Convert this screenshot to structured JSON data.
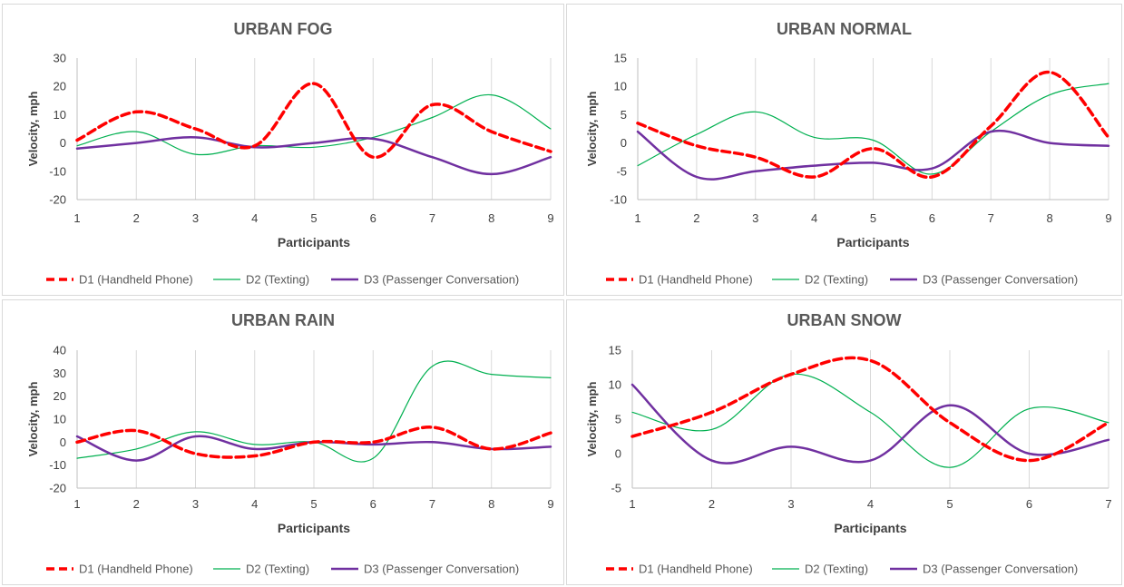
{
  "colors": {
    "d1": "#ff0000",
    "d2": "#00b050",
    "d3": "#7030a0",
    "grid": "#d9d9d9",
    "axis": "#bfbfbf",
    "text": "#595959"
  },
  "chart_data": [
    {
      "type": "line",
      "title": "URBAN FOG",
      "xlabel": "Participants",
      "ylabel": "Velocity, mph",
      "x": [
        1,
        2,
        3,
        4,
        5,
        6,
        7,
        8,
        9
      ],
      "ylim": [
        -20,
        30
      ],
      "yticks": [
        -20,
        -10,
        0,
        10,
        20,
        30
      ],
      "grid": "vertical",
      "legend": "bottom",
      "series": [
        {
          "name": "D1 (Handheld Phone)",
          "values": [
            1,
            11,
            5,
            -1,
            21,
            -5,
            13.5,
            4,
            -3
          ]
        },
        {
          "name": "D2 (Texting)",
          "values": [
            -1,
            4,
            -4,
            -1,
            -1.5,
            2,
            9,
            17,
            5
          ]
        },
        {
          "name": "D3 (Passenger Conversation)",
          "values": [
            -2,
            0,
            2,
            -1.5,
            0,
            1.5,
            -5,
            -11,
            -5
          ]
        }
      ]
    },
    {
      "type": "line",
      "title": "URBAN NORMAL",
      "xlabel": "Participants",
      "ylabel": "Velocity, mph",
      "x": [
        1,
        2,
        3,
        4,
        5,
        6,
        7,
        8,
        9
      ],
      "ylim": [
        -10,
        15
      ],
      "yticks": [
        -10,
        -5,
        0,
        5,
        10,
        15
      ],
      "grid": "vertical",
      "legend": "bottom",
      "series": [
        {
          "name": "D1 (Handheld Phone)",
          "values": [
            3.5,
            -0.5,
            -2.5,
            -6,
            -1,
            -6,
            3,
            12.5,
            1
          ]
        },
        {
          "name": "D2 (Texting)",
          "values": [
            -4,
            1.5,
            5.5,
            1,
            0.5,
            -5.5,
            2,
            8.5,
            10.5
          ]
        },
        {
          "name": "D3 (Passenger Conversation)",
          "values": [
            2,
            -6,
            -5,
            -4,
            -3.5,
            -4.5,
            2,
            0,
            -0.5
          ]
        }
      ]
    },
    {
      "type": "line",
      "title": "URBAN RAIN",
      "xlabel": "Participants",
      "ylabel": "Velocity, mph",
      "x": [
        1,
        2,
        3,
        4,
        5,
        6,
        7,
        8,
        9
      ],
      "ylim": [
        -20,
        40
      ],
      "yticks": [
        -20,
        -10,
        0,
        10,
        20,
        30,
        40
      ],
      "grid": "vertical",
      "legend": "bottom",
      "series": [
        {
          "name": "D1 (Handheld Phone)",
          "values": [
            0,
            5,
            -5,
            -6,
            0,
            0,
            6.5,
            -3,
            4
          ]
        },
        {
          "name": "D2 (Texting)",
          "values": [
            -7,
            -3,
            4.5,
            -1,
            0,
            -7,
            33,
            29.5,
            28
          ]
        },
        {
          "name": "D3 (Passenger Conversation)",
          "values": [
            2.5,
            -8,
            2.5,
            -3,
            0,
            -1,
            0,
            -3,
            -2
          ]
        }
      ]
    },
    {
      "type": "line",
      "title": "URBAN SNOW",
      "xlabel": "Participants",
      "ylabel": "Velocity, mph",
      "x": [
        1,
        2,
        3,
        4,
        5,
        6,
        7
      ],
      "ylim": [
        -5,
        15
      ],
      "yticks": [
        -5,
        0,
        5,
        10,
        15
      ],
      "grid": "vertical",
      "legend": "bottom",
      "series": [
        {
          "name": "D1 (Handheld Phone)",
          "values": [
            2.5,
            6,
            11.5,
            13.5,
            4.5,
            -1,
            4.5
          ]
        },
        {
          "name": "D2 (Texting)",
          "values": [
            6,
            3.5,
            11.5,
            6,
            -2,
            6.5,
            4.5
          ]
        },
        {
          "name": "D3 (Passenger Conversation)",
          "values": [
            10,
            -1,
            1,
            -1,
            7,
            0,
            2
          ]
        }
      ]
    }
  ]
}
